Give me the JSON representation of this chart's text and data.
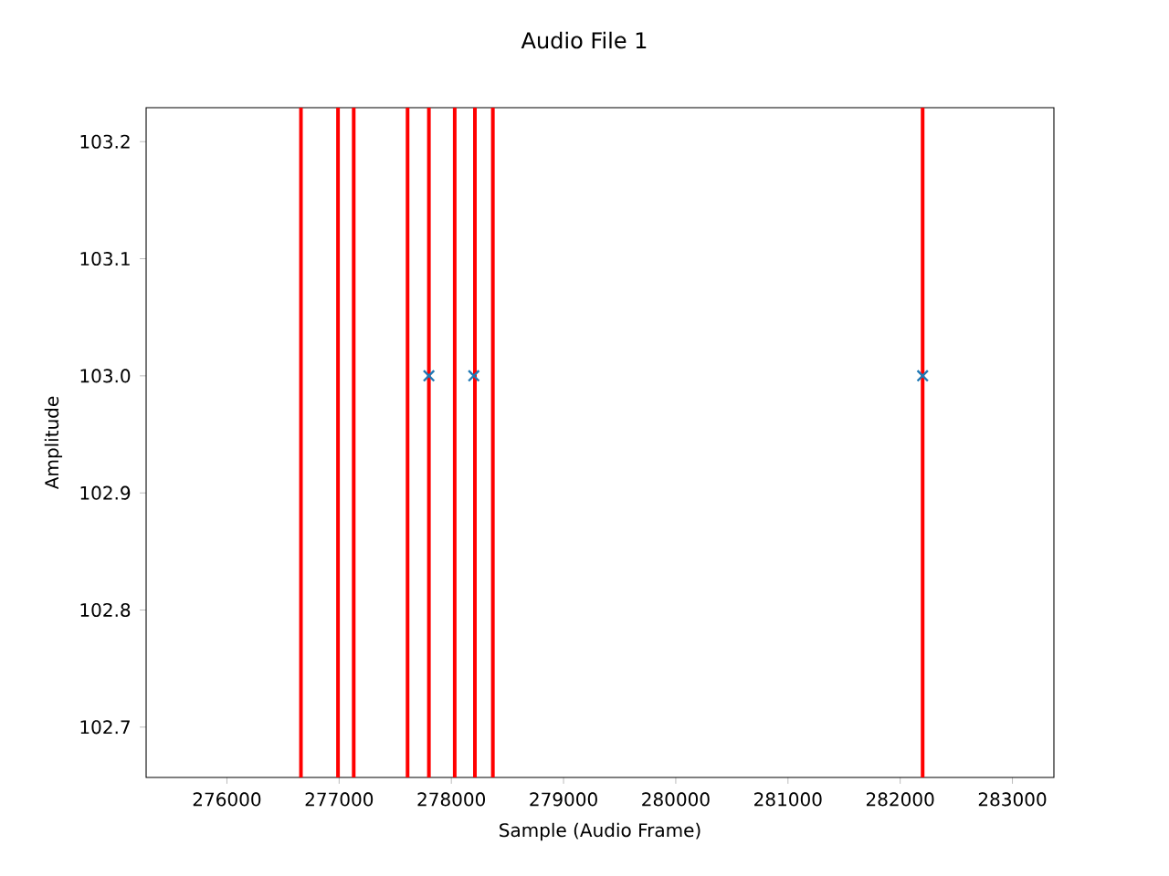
{
  "chart_data": {
    "type": "scatter",
    "title": "Audio File 1",
    "xlabel": "Sample (Audio Frame)",
    "ylabel": "Amplitude",
    "x": [
      277800,
      278200,
      282200
    ],
    "series": [
      {
        "color": "#1f77b4",
        "values": [
          103.0,
          103.0,
          103.0
        ]
      }
    ],
    "marker": "cross",
    "xlim": [
      275280,
      283370
    ],
    "ylim": [
      102.657,
      103.229
    ],
    "xticks": [
      276000,
      277000,
      278000,
      279000,
      280000,
      281000,
      282000,
      283000
    ],
    "yticks": [
      {
        "value": 102.7,
        "label": "102.7"
      },
      {
        "value": 102.8,
        "label": "102.8"
      },
      {
        "value": 102.9,
        "label": "102.9"
      },
      {
        "value": 103.0,
        "label": "103.0"
      },
      {
        "value": 103.1,
        "label": "103.1"
      },
      {
        "value": 103.2,
        "label": "103.2"
      }
    ],
    "ref_lines": [
      {
        "axis": "x",
        "value": 276660,
        "color": "#ff0000"
      },
      {
        "axis": "x",
        "value": 276990,
        "color": "#ff0000"
      },
      {
        "axis": "x",
        "value": 277130,
        "color": "#ff0000"
      },
      {
        "axis": "x",
        "value": 277610,
        "color": "#ff0000"
      },
      {
        "axis": "x",
        "value": 277800,
        "color": "#ff0000"
      },
      {
        "axis": "x",
        "value": 278030,
        "color": "#ff0000"
      },
      {
        "axis": "x",
        "value": 278210,
        "color": "#ff0000"
      },
      {
        "axis": "x",
        "value": 278370,
        "color": "#ff0000"
      },
      {
        "axis": "x",
        "value": 282200,
        "color": "#ff0000"
      }
    ]
  }
}
